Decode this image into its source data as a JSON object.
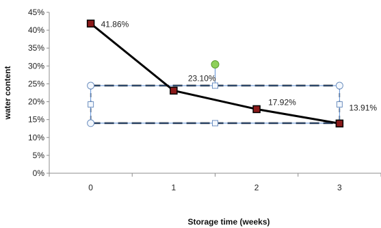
{
  "chart_data": {
    "type": "line",
    "title": "",
    "xlabel": "Storage time (weeks)",
    "ylabel": "water content",
    "x": [
      0,
      1,
      2,
      3
    ],
    "xlim": [
      -0.5,
      3.5
    ],
    "ylim": [
      0,
      45
    ],
    "y_ticks": [
      "0%",
      "5%",
      "10%",
      "15%",
      "20%",
      "25%",
      "30%",
      "35%",
      "40%",
      "45%"
    ],
    "x_ticks": [
      "0",
      "1",
      "2",
      "3"
    ],
    "grid": false,
    "series": [
      {
        "values": [
          41.86,
          23.1,
          17.92,
          13.91
        ],
        "labels": [
          "41.86%",
          "23.10%",
          "17.92%",
          "13.91%"
        ],
        "line_color": "#000000",
        "marker_fill": "#8b1a1a"
      }
    ],
    "annotations": [
      {
        "type": "selected-rectangle",
        "x_range": [
          0,
          3
        ],
        "y_range": [
          14,
          24.5
        ],
        "style": "dashed"
      }
    ]
  }
}
